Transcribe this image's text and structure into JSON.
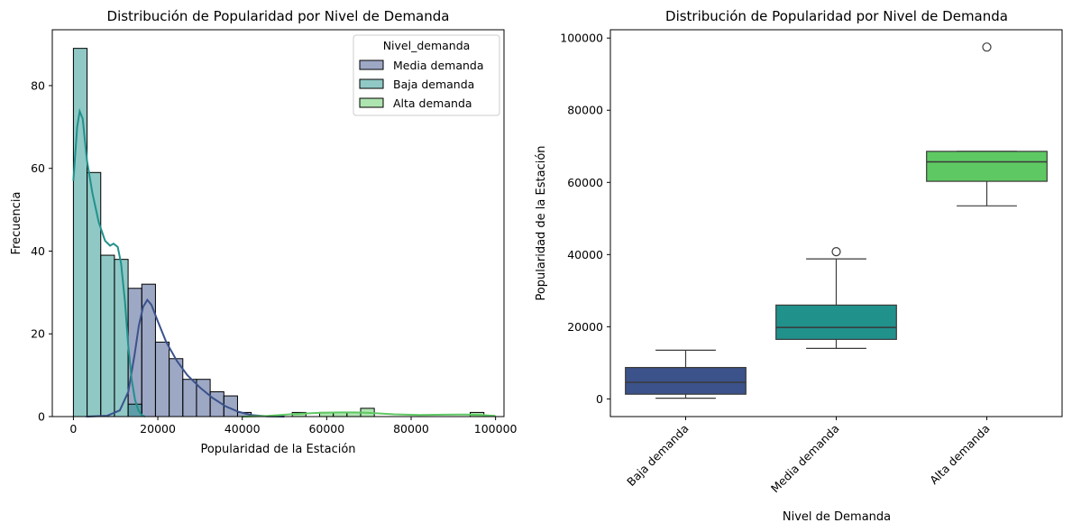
{
  "chart_data": [
    {
      "type": "histogram",
      "title": "Distribución de Popularidad por Nivel de Demanda",
      "xlabel": "Popularidad de la Estación",
      "ylabel": "Frecuencia",
      "xlim": [
        -5000,
        102000
      ],
      "ylim": [
        0,
        93.5
      ],
      "xticks": [
        0,
        20000,
        40000,
        60000,
        80000,
        100000
      ],
      "xtick_labels": [
        "0",
        "20000",
        "40000",
        "60000",
        "80000",
        "100000"
      ],
      "yticks": [
        0,
        20,
        40,
        60,
        80
      ],
      "ytick_labels": [
        "0",
        "20",
        "40",
        "60",
        "80"
      ],
      "bin_width": 3240,
      "legend": {
        "title": "Nivel_demanda",
        "placement": "top-right",
        "entries": [
          "Media demanda",
          "Baja demanda",
          "Alta demanda"
        ]
      },
      "series": [
        {
          "name": "Media demanda",
          "color": "#3b528b",
          "fill": "#9ca8c5",
          "bins": [
            {
              "x0": 12960,
              "x1": 16200,
              "count": 31
            },
            {
              "x0": 16200,
              "x1": 19440,
              "count": 32
            },
            {
              "x0": 19440,
              "x1": 22680,
              "count": 18
            },
            {
              "x0": 22680,
              "x1": 25920,
              "count": 14
            },
            {
              "x0": 25920,
              "x1": 29160,
              "count": 9
            },
            {
              "x0": 29160,
              "x1": 32400,
              "count": 9
            },
            {
              "x0": 32400,
              "x1": 35640,
              "count": 6
            },
            {
              "x0": 35640,
              "x1": 38880,
              "count": 5
            },
            {
              "x0": 38880,
              "x1": 42120,
              "count": 1
            }
          ],
          "kde": [
            [
              3000,
              0
            ],
            [
              8000,
              0.2
            ],
            [
              11000,
              1.5
            ],
            [
              13000,
              6
            ],
            [
              14500,
              15
            ],
            [
              15500,
              22
            ],
            [
              16500,
              26.5
            ],
            [
              17500,
              28.2
            ],
            [
              18500,
              27
            ],
            [
              20000,
              23
            ],
            [
              22000,
              18
            ],
            [
              24500,
              13.5
            ],
            [
              27000,
              10
            ],
            [
              30000,
              7
            ],
            [
              33000,
              4.5
            ],
            [
              36000,
              2.5
            ],
            [
              39000,
              1.2
            ],
            [
              42000,
              0.4
            ],
            [
              46000,
              0.05
            ],
            [
              50000,
              0
            ]
          ]
        },
        {
          "name": "Baja demanda",
          "color": "#21918c",
          "fill": "#90c8c5",
          "bins": [
            {
              "x0": 0,
              "x1": 3240,
              "count": 89
            },
            {
              "x0": 3240,
              "x1": 6480,
              "count": 59
            },
            {
              "x0": 6480,
              "x1": 9720,
              "count": 39
            },
            {
              "x0": 9720,
              "x1": 12960,
              "count": 38
            },
            {
              "x0": 12960,
              "x1": 16200,
              "count": 3
            }
          ],
          "kde": [
            [
              0,
              57
            ],
            [
              400,
              63
            ],
            [
              900,
              70
            ],
            [
              1500,
              73.8
            ],
            [
              2200,
              72
            ],
            [
              3200,
              62
            ],
            [
              4500,
              54
            ],
            [
              6000,
              47
            ],
            [
              7500,
              42.5
            ],
            [
              8700,
              41.3
            ],
            [
              9500,
              41.8
            ],
            [
              10500,
              41
            ],
            [
              11300,
              37
            ],
            [
              12200,
              28
            ],
            [
              13000,
              17
            ],
            [
              13800,
              9
            ],
            [
              14600,
              4
            ],
            [
              15400,
              1.5
            ],
            [
              16200,
              0.3
            ],
            [
              17000,
              0
            ]
          ]
        },
        {
          "name": "Alta demanda",
          "color": "#5ec962",
          "fill": "#b1e2b1",
          "bins": [
            {
              "x0": 51840,
              "x1": 55080,
              "count": 1
            },
            {
              "x0": 58320,
              "x1": 61560,
              "count": 1
            },
            {
              "x0": 61560,
              "x1": 64800,
              "count": 1
            },
            {
              "x0": 64800,
              "x1": 68040,
              "count": 1
            },
            {
              "x0": 68040,
              "x1": 71280,
              "count": 2
            },
            {
              "x0": 94000,
              "x1": 97240,
              "count": 1
            }
          ],
          "kde": [
            [
              40000,
              0
            ],
            [
              46000,
              0.15
            ],
            [
              52000,
              0.6
            ],
            [
              58000,
              0.9
            ],
            [
              63000,
              1.0
            ],
            [
              67000,
              1.0
            ],
            [
              71000,
              0.85
            ],
            [
              76000,
              0.55
            ],
            [
              82000,
              0.4
            ],
            [
              88000,
              0.45
            ],
            [
              93000,
              0.5
            ],
            [
              97000,
              0.35
            ],
            [
              100000,
              0.15
            ]
          ]
        }
      ]
    },
    {
      "type": "box",
      "title": "Distribución de Popularidad por Nivel de Demanda",
      "xlabel": "Nivel de Demanda",
      "ylabel": "Popularidad de la Estación",
      "ylim": [
        -4900,
        102300
      ],
      "yticks": [
        0,
        20000,
        40000,
        60000,
        80000,
        100000
      ],
      "ytick_labels": [
        "0",
        "20000",
        "40000",
        "60000",
        "80000",
        "100000"
      ],
      "categories": [
        "Baja demanda",
        "Media demanda",
        "Alta demanda"
      ],
      "boxes": [
        {
          "name": "Baja demanda",
          "color": "#3b528b",
          "whisker_low": 200,
          "q1": 1300,
          "median": 4600,
          "q3": 8700,
          "whisker_high": 13500,
          "outliers": []
        },
        {
          "name": "Media demanda",
          "color": "#21918c",
          "whisker_low": 14000,
          "q1": 16500,
          "median": 19800,
          "q3": 26000,
          "whisker_high": 38800,
          "outliers": [
            40800
          ]
        },
        {
          "name": "Alta demanda",
          "color": "#5ec962",
          "whisker_low": 53500,
          "q1": 60300,
          "median": 65700,
          "q3": 68600,
          "whisker_high": 68600,
          "outliers": [
            97500
          ]
        }
      ]
    }
  ]
}
